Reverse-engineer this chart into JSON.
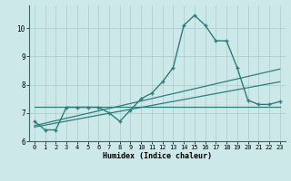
{
  "xlabel": "Humidex (Indice chaleur)",
  "bg_color": "#cce8e8",
  "line_color": "#2e7d7d",
  "grid_color": "#aacccc",
  "xlim": [
    -0.5,
    23.5
  ],
  "ylim": [
    6.0,
    10.8
  ],
  "yticks": [
    6,
    7,
    8,
    9,
    10
  ],
  "xticks": [
    0,
    1,
    2,
    3,
    4,
    5,
    6,
    7,
    8,
    9,
    10,
    11,
    12,
    13,
    14,
    15,
    16,
    17,
    18,
    19,
    20,
    21,
    22,
    23
  ],
  "curve1_x": [
    0,
    1,
    2,
    3,
    4,
    5,
    6,
    7,
    8,
    9,
    10,
    11,
    12,
    13,
    14,
    15,
    16,
    17,
    18,
    19,
    20,
    21,
    22,
    23
  ],
  "curve1_y": [
    6.7,
    6.4,
    6.4,
    7.2,
    7.2,
    7.2,
    7.2,
    7.0,
    6.7,
    7.1,
    7.5,
    7.7,
    8.1,
    8.6,
    10.1,
    10.45,
    10.1,
    9.55,
    9.55,
    8.6,
    7.45,
    7.3,
    7.3,
    7.4
  ],
  "line2_x": [
    0,
    23
  ],
  "line2_y": [
    6.55,
    8.55
  ],
  "line3_x": [
    0,
    23
  ],
  "line3_y": [
    6.5,
    8.1
  ],
  "flat_line_x": [
    0,
    23
  ],
  "flat_line_y": [
    7.22,
    7.22
  ]
}
